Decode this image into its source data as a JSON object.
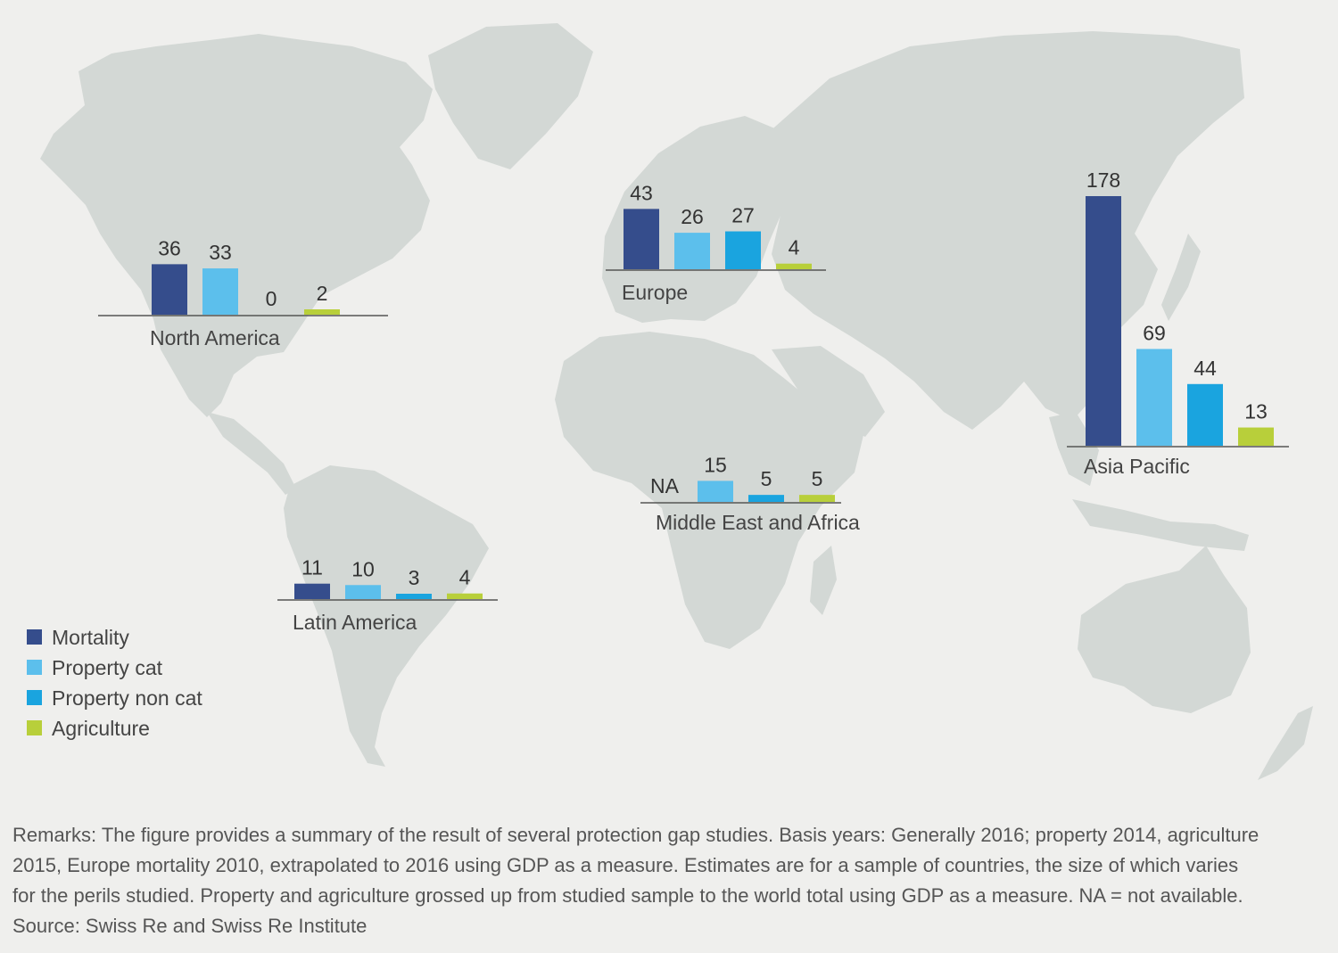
{
  "chart_data": {
    "type": "bar",
    "subtype": "grouped bars placed on a world map, one group per region",
    "legend": [
      {
        "name": "Mortality",
        "color": "#354d8c"
      },
      {
        "name": "Property cat",
        "color": "#5cbfec"
      },
      {
        "name": "Property non cat",
        "color": "#1aa4df"
      },
      {
        "name": "Agriculture",
        "color": "#b8cf3a"
      }
    ],
    "legend_position": "bottom-left",
    "regions": [
      {
        "name": "North America",
        "values": [
          36,
          33,
          0,
          2
        ],
        "labels": [
          "36",
          "33",
          "0",
          "2"
        ]
      },
      {
        "name": "Europe",
        "values": [
          43,
          26,
          27,
          4
        ],
        "labels": [
          "43",
          "26",
          "27",
          "4"
        ]
      },
      {
        "name": "Asia Pacific",
        "values": [
          178,
          69,
          44,
          13
        ],
        "labels": [
          "178",
          "69",
          "44",
          "13"
        ]
      },
      {
        "name": "Middle East and Africa",
        "values": [
          null,
          15,
          5,
          5
        ],
        "labels": [
          "NA",
          "15",
          "5",
          "5"
        ]
      },
      {
        "name": "Latin America",
        "values": [
          11,
          10,
          3,
          4
        ],
        "labels": [
          "11",
          "10",
          "3",
          "4"
        ]
      }
    ]
  },
  "remarks": {
    "lines": [
      "Remarks: The figure provides a summary of the result of several protection gap studies. Basis years: Generally 2016; property 2014, agriculture",
      "2015, Europe mortality 2010, extrapolated to 2016 using GDP as a measure. Estimates are for a sample of countries, the size of which varies",
      "for the perils studied. Property and agriculture grossed up from studied sample to the world total using GDP as a measure. NA = not available."
    ],
    "source": "Source: Swiss Re and Swiss Re Institute"
  },
  "colors": {
    "background": "#efefed",
    "land": "#d3d8d5",
    "axis": "#555555"
  }
}
